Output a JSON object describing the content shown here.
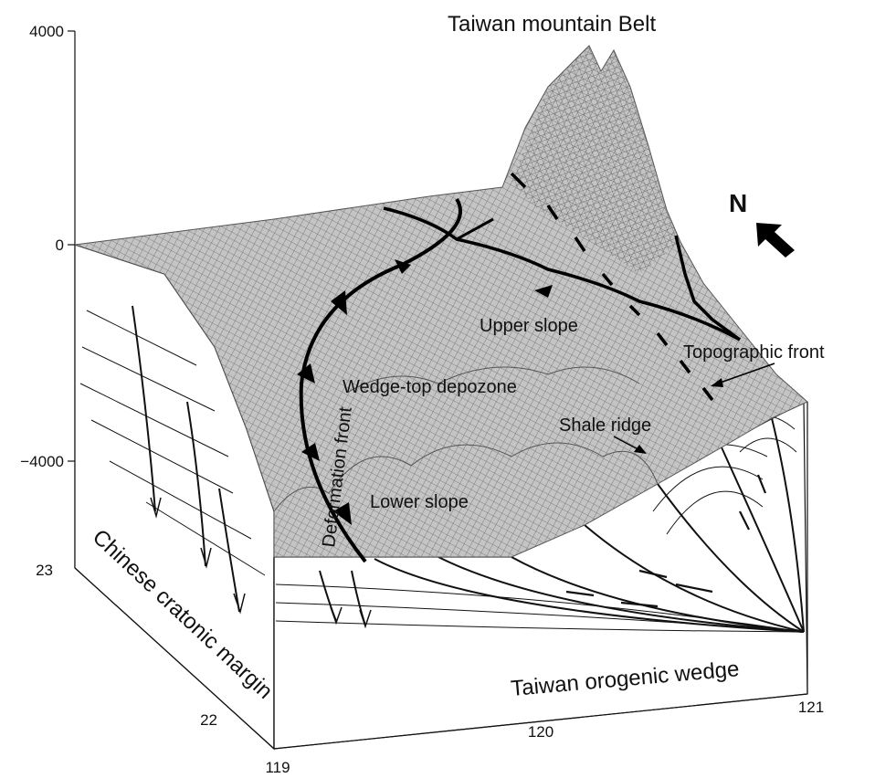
{
  "title": "Taiwan mountain Belt",
  "elevation_ticks": [
    "4000",
    "0",
    "−4000"
  ],
  "latitude_ticks": [
    "23",
    "22"
  ],
  "longitude_ticks": [
    "119",
    "120",
    "121"
  ],
  "labels": {
    "upper_slope": "Upper slope",
    "topographic_front": "Topographic front",
    "wedge_top": "Wedge-top depozone",
    "shale_ridge": "Shale  ridge",
    "lower_slope": "Lower slope",
    "deformation_front": "Deformation front",
    "chinese_margin": "Chinese cratonic margin",
    "orogenic_wedge": "Taiwan orogenic wedge",
    "north": "N"
  },
  "colors": {
    "ink": "#111111",
    "mesh_fill": "#bdbdbd",
    "mesh_line": "#6b6b6b",
    "block_face": "#ffffff"
  }
}
